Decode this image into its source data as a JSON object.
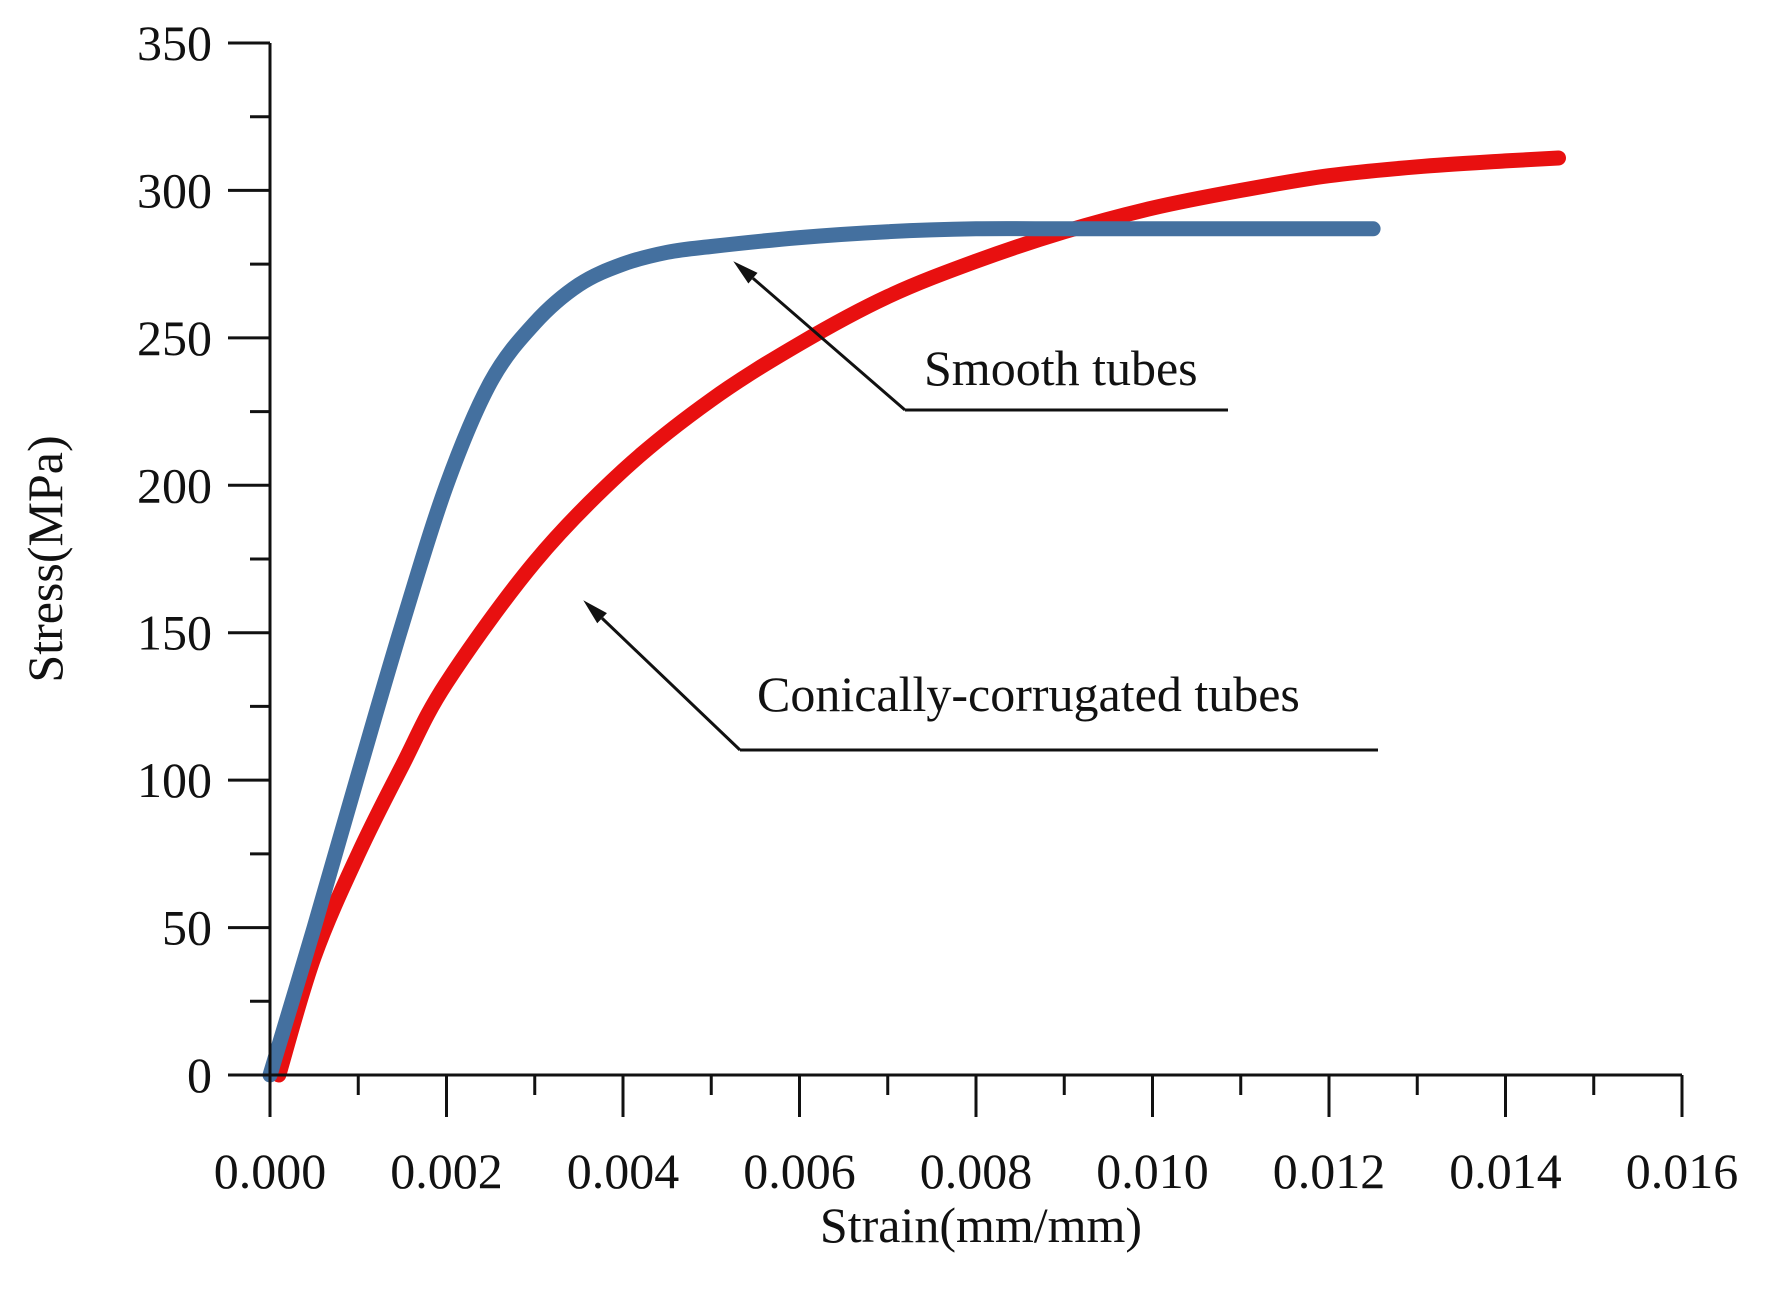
{
  "chart_data": {
    "type": "line",
    "title": "",
    "xlabel": "Strain(mm/mm)",
    "ylabel": "Stress(MPa)",
    "xlim": [
      0,
      0.016
    ],
    "ylim": [
      0,
      350
    ],
    "x_ticks": [
      0.0,
      0.002,
      0.004,
      0.006,
      0.008,
      0.01,
      0.012,
      0.014,
      0.016
    ],
    "x_tick_labels": [
      "0.000",
      "0.002",
      "0.004",
      "0.006",
      "0.008",
      "0.010",
      "0.012",
      "0.014",
      "0.016"
    ],
    "y_ticks": [
      0,
      50,
      100,
      150,
      200,
      250,
      300,
      350
    ],
    "y_tick_labels": [
      "0",
      "50",
      "100",
      "150",
      "200",
      "250",
      "300",
      "350"
    ],
    "grid": false,
    "series": [
      {
        "name": "Smooth tubes",
        "color": "#44709f",
        "x": [
          0.0,
          0.0005,
          0.001,
          0.0015,
          0.002,
          0.0025,
          0.003,
          0.0035,
          0.004,
          0.0045,
          0.005,
          0.006,
          0.007,
          0.008,
          0.009,
          0.01,
          0.011,
          0.0125
        ],
        "y": [
          0,
          50,
          102,
          153,
          200,
          235,
          255,
          268,
          275,
          279,
          281,
          284,
          286,
          287,
          287,
          287,
          287,
          287
        ]
      },
      {
        "name": "Conically-corrugated tubes",
        "color": "#e81010",
        "x": [
          0.0001,
          0.0005,
          0.001,
          0.0015,
          0.002,
          0.003,
          0.004,
          0.005,
          0.006,
          0.007,
          0.008,
          0.009,
          0.01,
          0.011,
          0.012,
          0.013,
          0.014,
          0.0146
        ],
        "y": [
          0,
          40,
          75,
          105,
          133,
          174,
          205,
          229,
          248,
          264,
          276,
          286,
          294,
          300,
          305,
          308,
          310,
          311
        ]
      }
    ],
    "annotations": [
      {
        "text": "Smooth tubes",
        "target": "Smooth tubes",
        "point": [
          0.00525,
          276
        ]
      },
      {
        "text": "Conically-corrugated tubes",
        "target": "Conically-corrugated tubes",
        "point": [
          0.00355,
          161
        ]
      }
    ]
  }
}
